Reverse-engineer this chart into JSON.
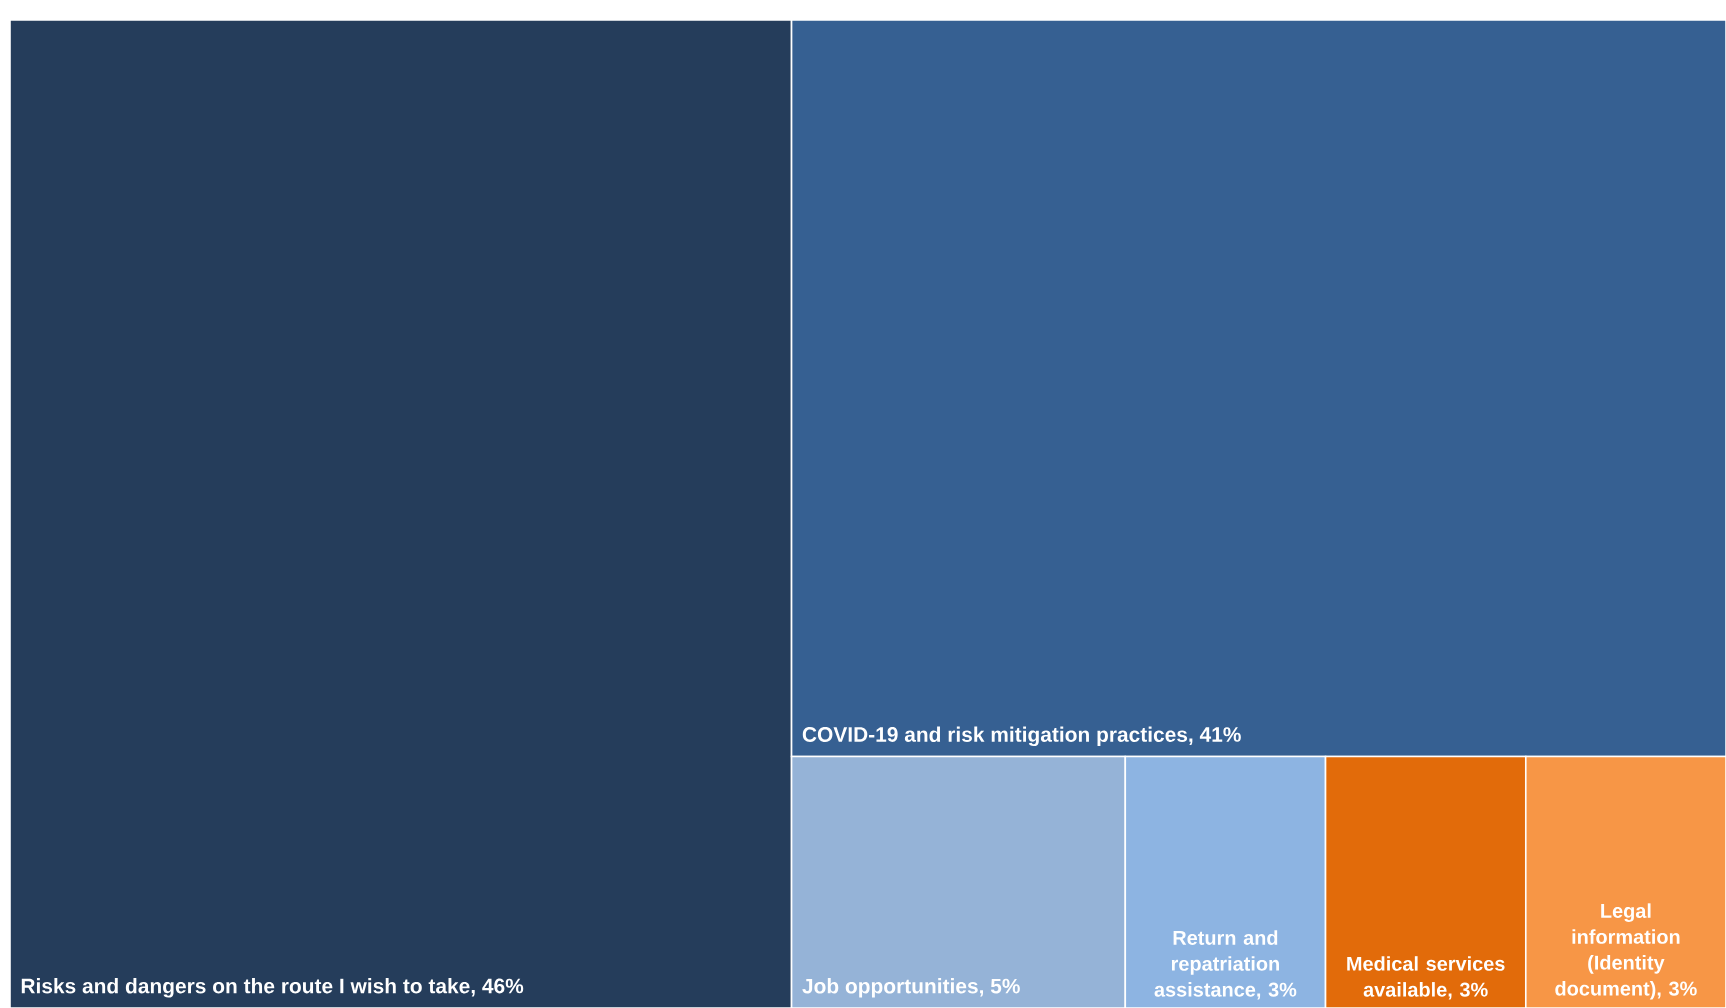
{
  "chart_data": {
    "type": "other",
    "categories": [
      "Risks and dangers on the route I wish to take",
      "COVID-19 and risk mitigation practices",
      "Job opportunities",
      "Return and repatriation assistance",
      "Medical services available",
      "Legal information (Identity document)"
    ],
    "values": [
      46,
      41,
      5,
      3,
      3,
      3
    ],
    "value_labels": [
      ", 46%",
      ", 41%",
      ", 5%",
      ", 3%",
      ", 3%",
      ", 3%"
    ],
    "colors": [
      "#253d5b",
      "#366092",
      "#95b3d7",
      "#8db4e2",
      "#e26b0a",
      "#f79646"
    ]
  }
}
